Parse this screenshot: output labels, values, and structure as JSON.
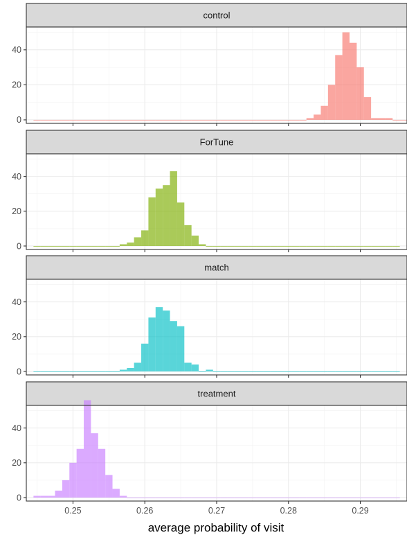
{
  "chart_data": {
    "type": "histogram",
    "xlabel": "average probability of visit",
    "ylabel": "",
    "xlim": [
      0.2435,
      0.2965
    ],
    "x_ticks": [
      0.25,
      0.26,
      0.27,
      0.28,
      0.29
    ],
    "x_tick_labels": [
      "0.25",
      "0.26",
      "0.27",
      "0.28",
      "0.29"
    ],
    "ylim": [
      -2,
      53
    ],
    "y_ticks": [
      0,
      20,
      40
    ],
    "y_tick_labels": [
      "0",
      "20",
      "40"
    ],
    "bin_width": 0.001,
    "grid": true,
    "facets": [
      {
        "label": "control",
        "color": "#F8766D",
        "bin_start": 0.2445,
        "counts": [
          0,
          0,
          0,
          0,
          0,
          0,
          0,
          0,
          0,
          0,
          0,
          0,
          0,
          0,
          0,
          0,
          0,
          0,
          0,
          0,
          0,
          0,
          0,
          0,
          0,
          0,
          0,
          0,
          0,
          0,
          0,
          0,
          0,
          0,
          0,
          0,
          0,
          0,
          1,
          3,
          8,
          20,
          37,
          50,
          44,
          30,
          13,
          1,
          1,
          1,
          0,
          0
        ]
      },
      {
        "label": "ForTune",
        "color": "#7CAE00",
        "bin_start": 0.2445,
        "counts": [
          0,
          0,
          0,
          0,
          0,
          0,
          0,
          0,
          0,
          0,
          0,
          0,
          1,
          2,
          5,
          9,
          28,
          33,
          35,
          43,
          25,
          12,
          6,
          1,
          0,
          0,
          0,
          0,
          0,
          0,
          0,
          0,
          0,
          0,
          0,
          0,
          0,
          0,
          0,
          0,
          0,
          0,
          0,
          0,
          0,
          0,
          0,
          0,
          0,
          0,
          0
        ]
      },
      {
        "label": "match",
        "color": "#00BFC4",
        "bin_start": 0.2445,
        "counts": [
          0,
          0,
          0,
          0,
          0,
          0,
          0,
          0,
          0,
          0,
          0,
          0,
          1,
          2,
          5,
          16,
          31,
          37,
          35,
          29,
          26,
          5,
          4,
          0,
          1,
          0,
          0,
          0,
          0,
          0,
          0,
          0,
          0,
          0,
          0,
          0,
          0,
          0,
          0,
          0,
          0,
          0,
          0,
          0,
          0,
          0,
          0,
          0,
          0,
          0,
          0
        ]
      },
      {
        "label": "treatment",
        "color": "#C77CFF",
        "bin_start": 0.2445,
        "counts": [
          1,
          1,
          1,
          4,
          10,
          20,
          28,
          56,
          37,
          28,
          13,
          5,
          1,
          0,
          0,
          0,
          0,
          0,
          0,
          0,
          0,
          0,
          0,
          0,
          0,
          0,
          0,
          0,
          0,
          0,
          0,
          0,
          0,
          0,
          0,
          0,
          0,
          0,
          0,
          0,
          0,
          0,
          0,
          0,
          0,
          0,
          0,
          0,
          0,
          0,
          0
        ]
      }
    ]
  }
}
